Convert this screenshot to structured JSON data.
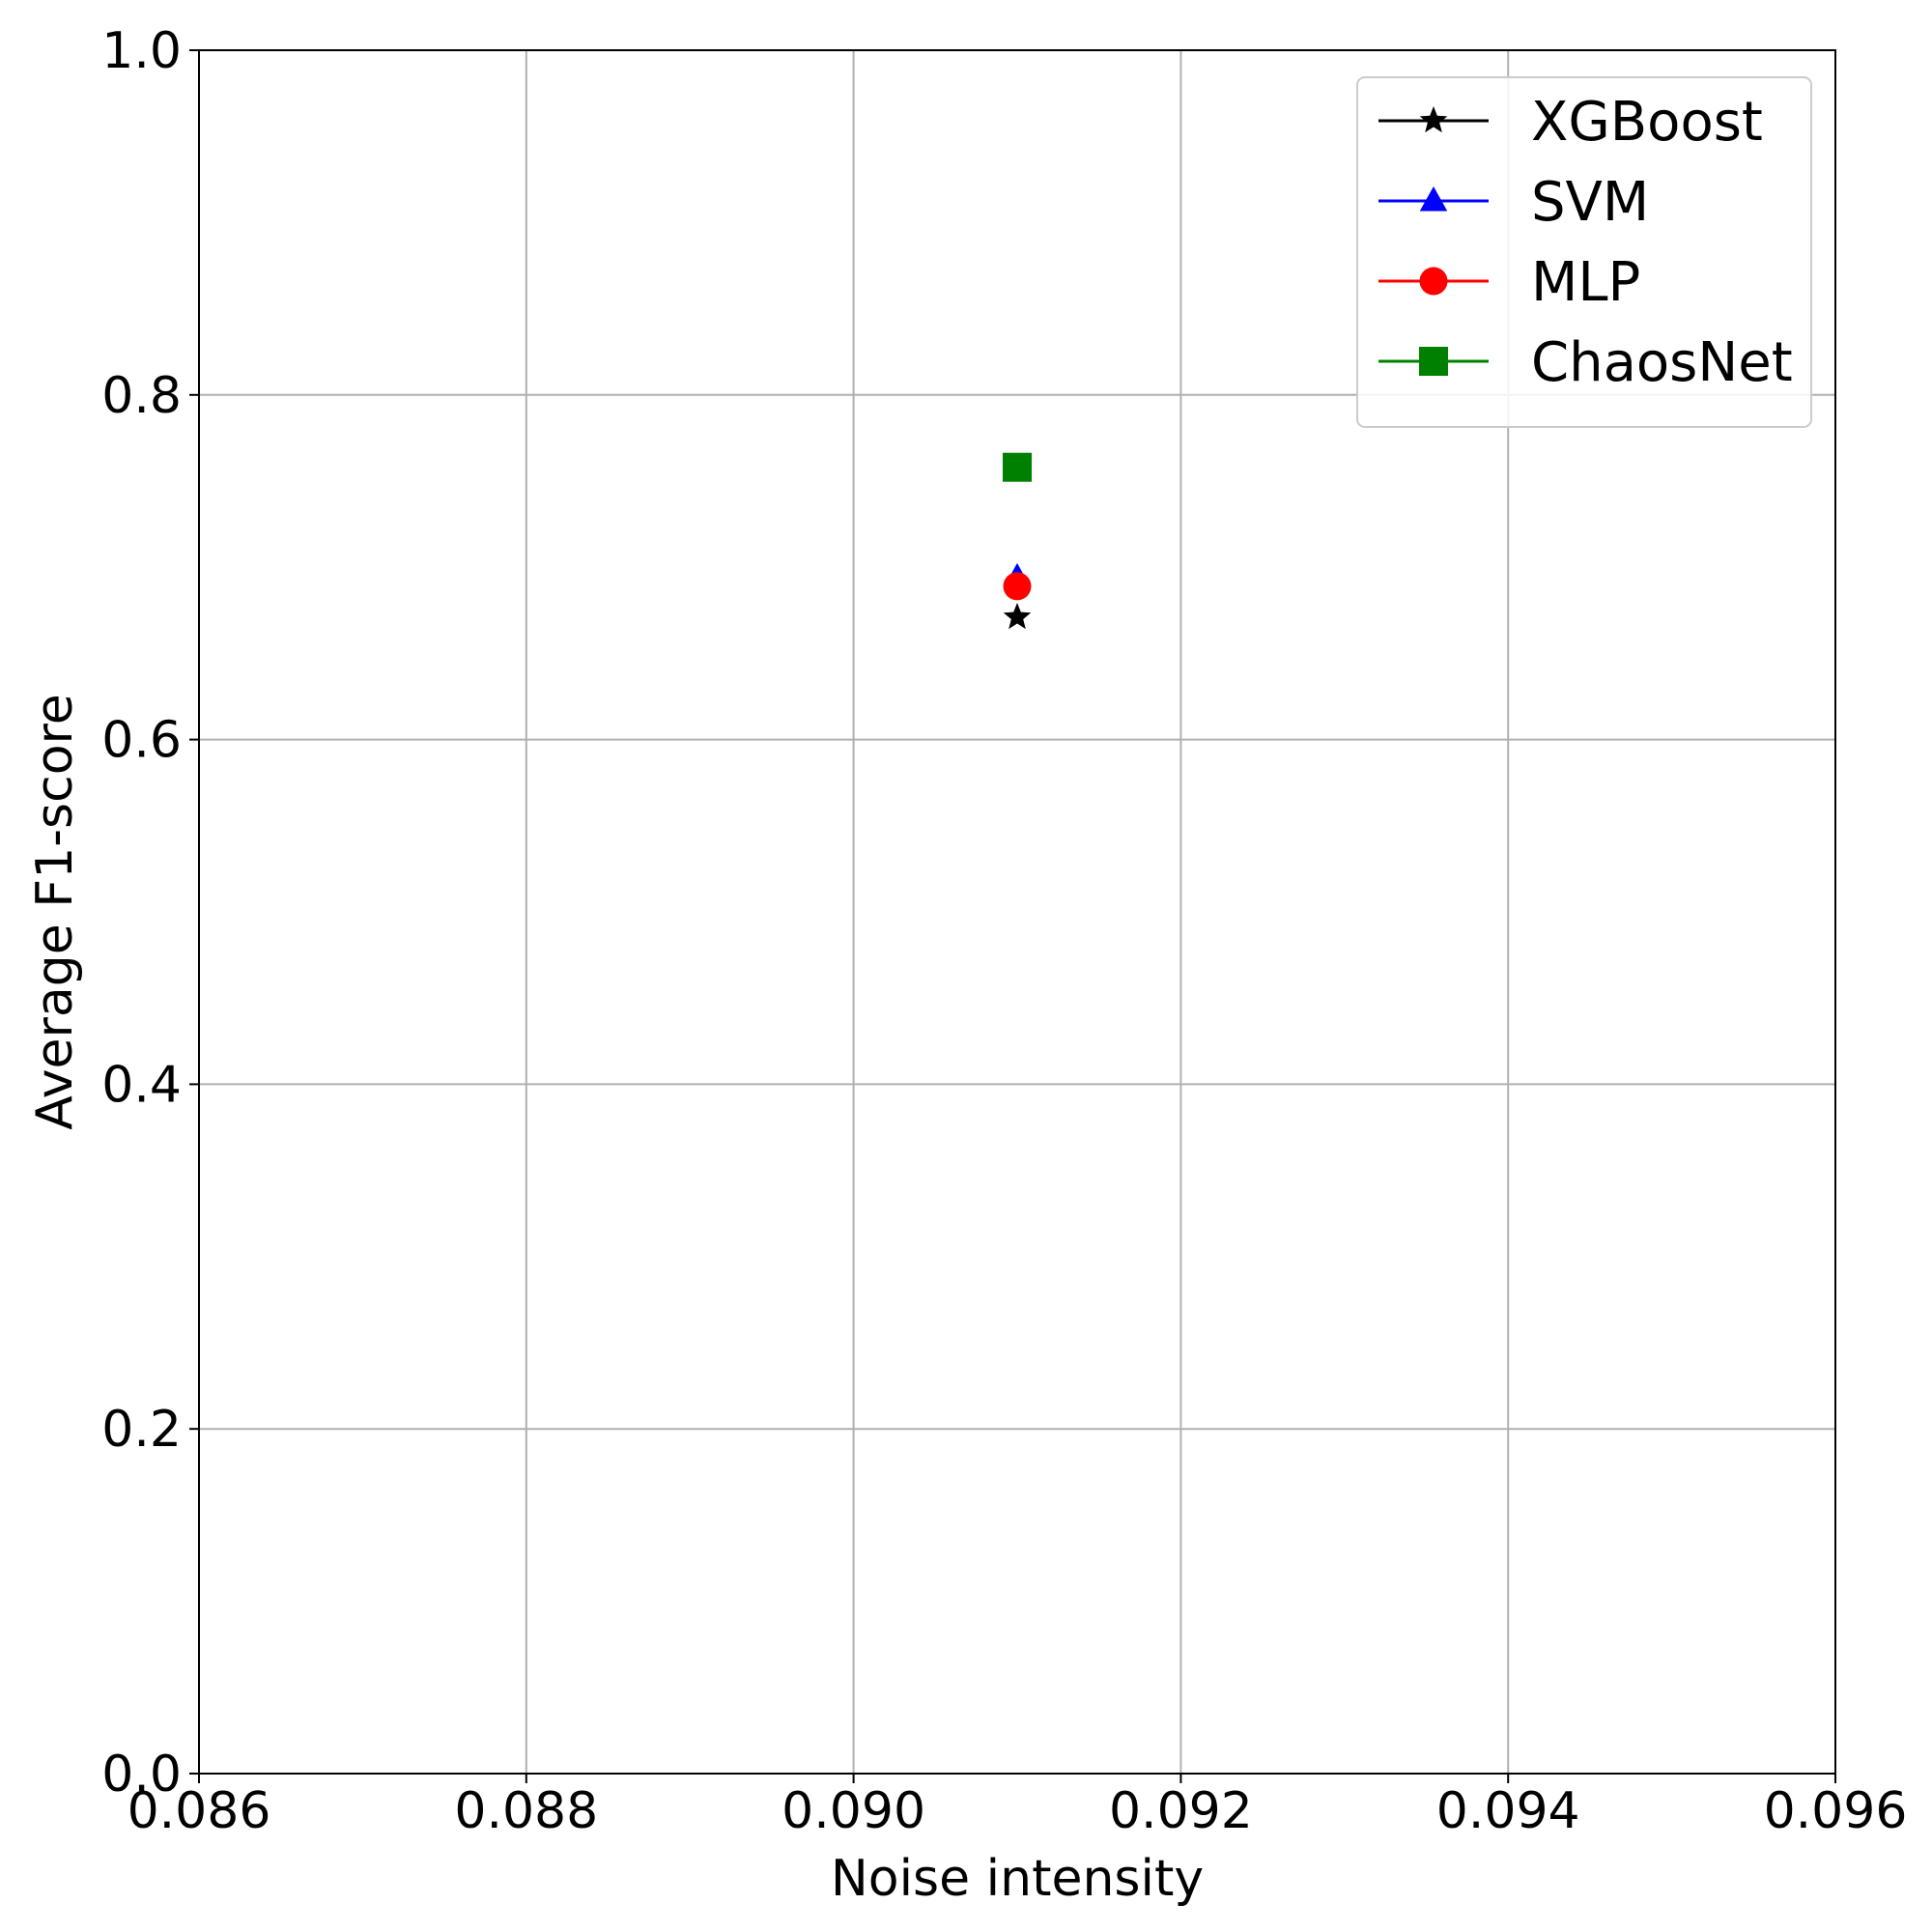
{
  "chart_data": {
    "type": "scatter",
    "xlabel": "Noise intensity",
    "ylabel": "Average F1-score",
    "xlim": [
      0.086,
      0.096
    ],
    "ylim": [
      0.0,
      1.0
    ],
    "x_ticks": [
      "0.086",
      "0.088",
      "0.090",
      "0.092",
      "0.094",
      "0.096"
    ],
    "y_ticks": [
      "0.0",
      "0.2",
      "0.4",
      "0.6",
      "0.8",
      "1.0"
    ],
    "grid": true,
    "legend_position": "top-right",
    "series": [
      {
        "name": "XGBoost",
        "marker": "star",
        "color": "#000000",
        "points": [
          {
            "x": 0.091,
            "y": 0.671
          }
        ]
      },
      {
        "name": "SVM",
        "marker": "triangle",
        "color": "#0000ff",
        "points": [
          {
            "x": 0.091,
            "y": 0.694
          }
        ]
      },
      {
        "name": "MLP",
        "marker": "circle",
        "color": "#ff0000",
        "points": [
          {
            "x": 0.091,
            "y": 0.689
          }
        ]
      },
      {
        "name": "ChaosNet",
        "marker": "square",
        "color": "#008000",
        "points": [
          {
            "x": 0.091,
            "y": 0.758
          }
        ]
      }
    ]
  }
}
